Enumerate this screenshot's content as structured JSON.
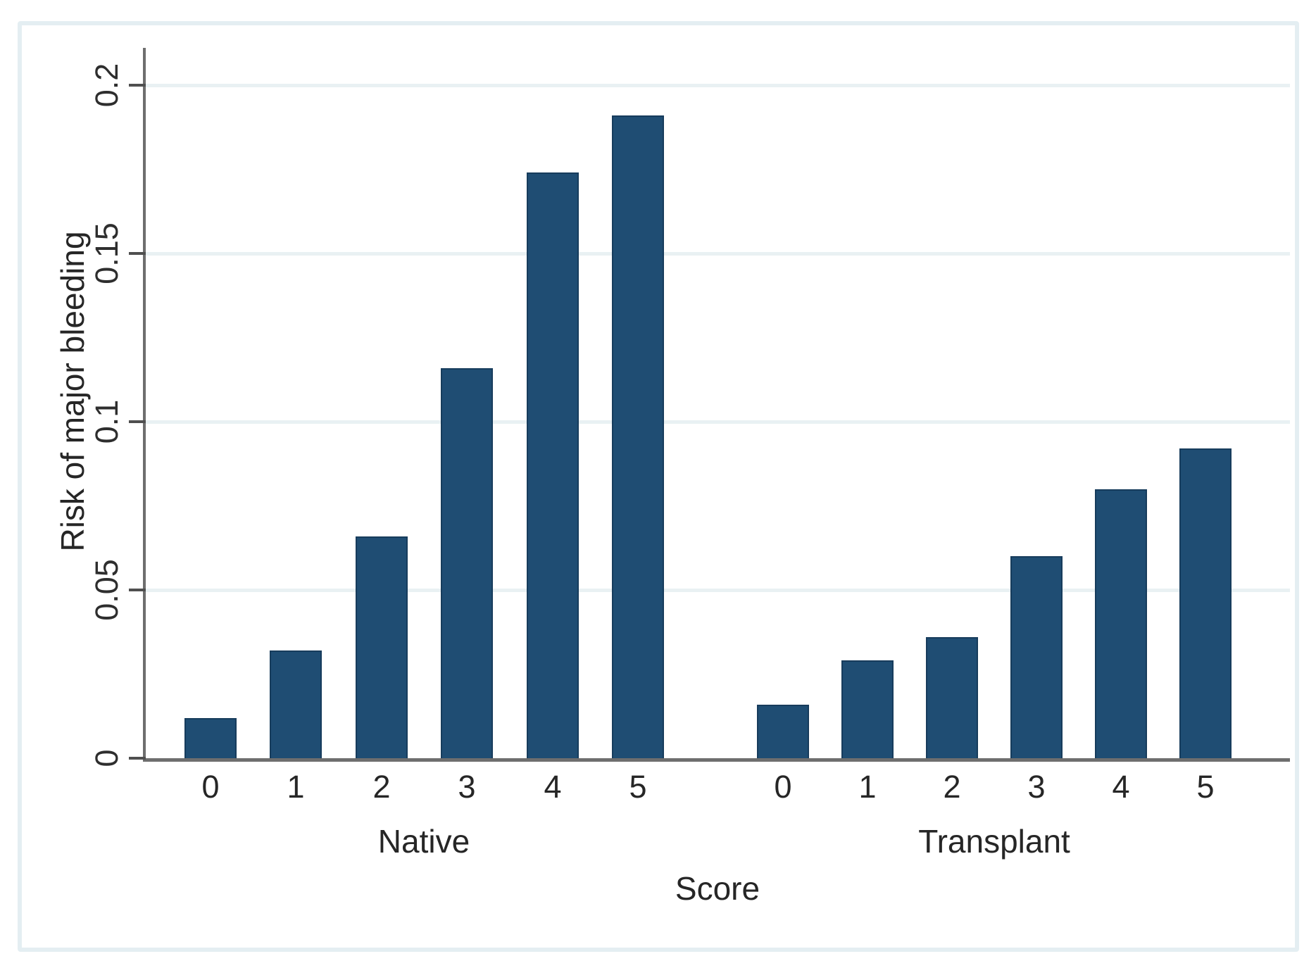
{
  "figure": {
    "background": "#ffffff",
    "frame_color": "#e4eef2"
  },
  "chart_data": {
    "type": "bar",
    "title": "",
    "xlabel": "Score",
    "ylabel": "Risk of major bleeding",
    "ylim": [
      0,
      0.2
    ],
    "yticks": {
      "values": [
        0,
        0.05,
        0.1,
        0.15,
        0.2
      ],
      "labels": [
        "0",
        "0.05",
        "0.1",
        "0.15",
        "0.2"
      ]
    },
    "grid": true,
    "legend": "none",
    "bar_color": "#1f4d73",
    "bar_border_color": "#173c5c",
    "gridline_color": "#e9f1f3",
    "axis_color": "#6e6e6e",
    "groups": [
      {
        "label": "Native",
        "categories": [
          "0",
          "1",
          "2",
          "3",
          "4",
          "5"
        ],
        "values": [
          0.012,
          0.032,
          0.066,
          0.116,
          0.174,
          0.191
        ]
      },
      {
        "label": "Transplant",
        "categories": [
          "0",
          "1",
          "2",
          "3",
          "4",
          "5"
        ],
        "values": [
          0.016,
          0.029,
          0.036,
          0.06,
          0.08,
          0.092
        ]
      }
    ]
  }
}
